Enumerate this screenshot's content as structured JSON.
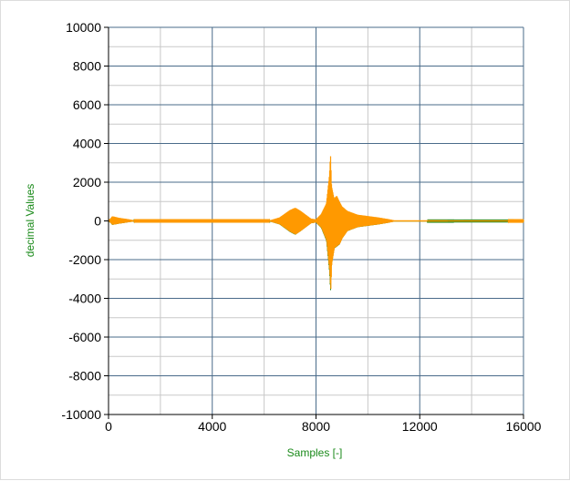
{
  "chart_data": {
    "type": "line",
    "xlabel": "Samples [-]",
    "ylabel": "decimal Values",
    "xlim": [
      0,
      16000
    ],
    "ylim": [
      -10000,
      10000
    ],
    "x_ticks": [
      0,
      4000,
      8000,
      12000,
      16000
    ],
    "y_ticks": [
      -10000,
      -8000,
      -6000,
      -4000,
      -2000,
      0,
      2000,
      4000,
      6000,
      8000,
      10000
    ],
    "grid": true,
    "legend": "none",
    "colors": {
      "major_grid": "#4a6b8a",
      "minor_grid": "#c8c8c8",
      "axis_title": "#1a8a1a",
      "series_upper": "#ff9900",
      "series_lower": "#2e8b1e"
    },
    "series": [
      {
        "color": "#ff9900",
        "envelope_x": [
          0,
          150,
          400,
          800,
          1000,
          6200,
          6600,
          7000,
          7200,
          7400,
          7800,
          8000,
          8200,
          8400,
          8520,
          8560,
          8600,
          8700,
          8800,
          8900,
          9000,
          9200,
          9600,
          10000,
          10400,
          10800,
          11000,
          16000
        ],
        "envelope_upper": [
          0,
          240,
          160,
          80,
          20,
          20,
          180,
          560,
          680,
          520,
          120,
          80,
          350,
          900,
          2400,
          3450,
          1800,
          1150,
          1300,
          1000,
          750,
          520,
          320,
          250,
          180,
          90,
          30,
          20
        ],
        "envelope_lower": [
          0,
          -200,
          -140,
          -60,
          -20,
          -20,
          -180,
          -560,
          -700,
          -520,
          -120,
          -80,
          -350,
          -1000,
          -2600,
          -3600,
          -2200,
          -1400,
          -1300,
          -1200,
          -900,
          -520,
          -320,
          -250,
          -180,
          -90,
          -30,
          -20
        ]
      }
    ]
  }
}
